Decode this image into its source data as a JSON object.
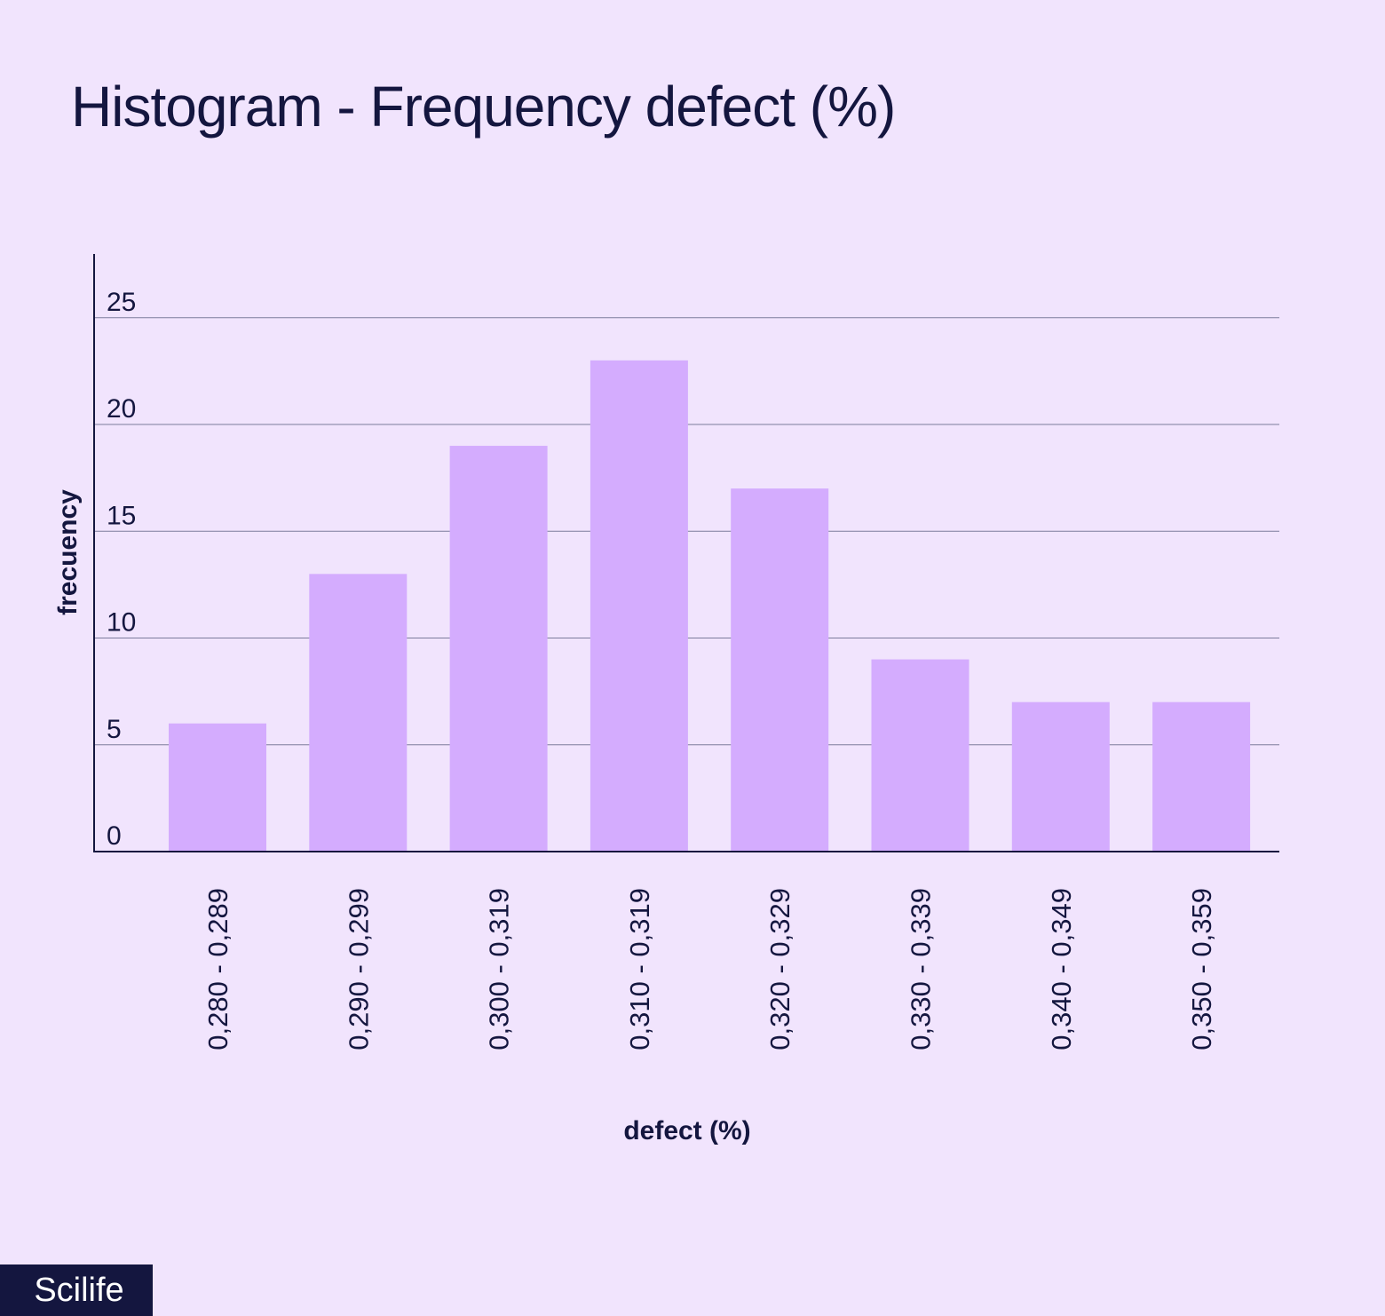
{
  "page": {
    "background": "#f1e4fd"
  },
  "brand": {
    "label": "Scilife",
    "background": "#14163f"
  },
  "chart_data": {
    "type": "bar",
    "title": "Histogram - Frequency defect (%)",
    "xlabel": "defect (%)",
    "ylabel": "frecuency",
    "categories": [
      "0,280 - 0,289",
      "0,290 - 0,299",
      "0,300 - 0,319",
      "0,310 - 0,319",
      "0,320 - 0,329",
      "0,330 - 0,339",
      "0,340 - 0,349",
      "0,350 - 0,359"
    ],
    "values": [
      6,
      13,
      19,
      23,
      17,
      9,
      7,
      7
    ],
    "y_ticks": [
      "0",
      "5",
      "10",
      "15",
      "20",
      "25"
    ],
    "y_tick_values": [
      0,
      5,
      10,
      15,
      20,
      25
    ],
    "ylim": [
      0,
      28
    ],
    "grid": true,
    "bar_color": "#d4acfe",
    "axis_color": "#14163f"
  }
}
